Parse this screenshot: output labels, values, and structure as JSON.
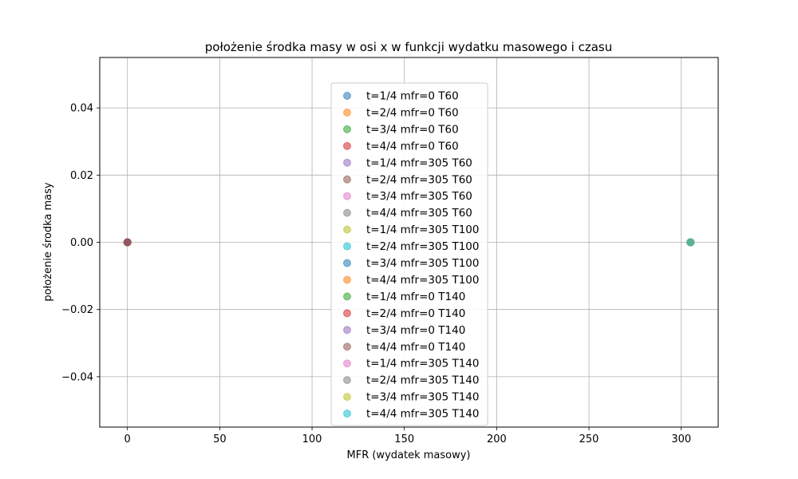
{
  "chart_data": {
    "type": "scatter",
    "title": "położenie środka masy w osi x w funkcji wydatku masowego i czasu",
    "xlabel": "MFR (wydatek masowy)",
    "ylabel": "położenie środka masy",
    "xlim": [
      -15,
      320
    ],
    "ylim": [
      -0.055,
      0.055
    ],
    "xticks": [
      0,
      50,
      100,
      150,
      200,
      250,
      300
    ],
    "yticks": [
      -0.04,
      -0.02,
      0.0,
      0.02,
      0.04
    ],
    "xtick_labels": [
      "0",
      "50",
      "100",
      "150",
      "200",
      "250",
      "300"
    ],
    "ytick_labels": [
      "−0.04",
      "−0.02",
      "0.00",
      "0.02",
      "0.04"
    ],
    "grid": true,
    "legend_position": "center",
    "marker_alpha": 0.55,
    "series": [
      {
        "name": "t=1/4 mfr=0 T60",
        "color": "#1f77b4",
        "points": [
          [
            0,
            0.0
          ]
        ]
      },
      {
        "name": "t=2/4 mfr=0 T60",
        "color": "#ff7f0e",
        "points": [
          [
            0,
            0.0
          ]
        ]
      },
      {
        "name": "t=3/4 mfr=0 T60",
        "color": "#2ca02c",
        "points": [
          [
            0,
            0.0
          ]
        ]
      },
      {
        "name": "t=4/4 mfr=0 T60",
        "color": "#d62728",
        "points": [
          [
            0,
            0.0
          ]
        ]
      },
      {
        "name": "t=1/4 mfr=305 T60",
        "color": "#9467bd",
        "points": [
          [
            305,
            0.0
          ]
        ]
      },
      {
        "name": "t=2/4 mfr=305 T60",
        "color": "#8c564b",
        "points": [
          [
            305,
            0.0
          ]
        ]
      },
      {
        "name": "t=3/4 mfr=305 T60",
        "color": "#e377c2",
        "points": [
          [
            305,
            0.0
          ]
        ]
      },
      {
        "name": "t=4/4 mfr=305 T60",
        "color": "#7f7f7f",
        "points": [
          [
            305,
            0.0
          ]
        ]
      },
      {
        "name": "t=1/4 mfr=305 T100",
        "color": "#bcbd22",
        "points": [
          [
            305,
            0.0
          ]
        ]
      },
      {
        "name": "t=2/4 mfr=305 T100",
        "color": "#17becf",
        "points": [
          [
            305,
            0.0
          ]
        ]
      },
      {
        "name": "t=3/4 mfr=305 T100",
        "color": "#1f77b4",
        "points": [
          [
            305,
            0.0
          ]
        ]
      },
      {
        "name": "t=4/4 mfr=305 T100",
        "color": "#ff7f0e",
        "points": [
          [
            305,
            0.0
          ]
        ]
      },
      {
        "name": "t=1/4 mfr=0 T140",
        "color": "#2ca02c",
        "points": [
          [
            0,
            0.0
          ]
        ]
      },
      {
        "name": "t=2/4 mfr=0 T140",
        "color": "#d62728",
        "points": [
          [
            0,
            0.0
          ]
        ]
      },
      {
        "name": "t=3/4 mfr=0 T140",
        "color": "#9467bd",
        "points": [
          [
            0,
            0.0
          ]
        ]
      },
      {
        "name": "t=4/4 mfr=0 T140",
        "color": "#8c564b",
        "points": [
          [
            0,
            0.0
          ]
        ]
      },
      {
        "name": "t=1/4 mfr=305 T140",
        "color": "#e377c2",
        "points": [
          [
            305,
            0.0
          ]
        ]
      },
      {
        "name": "t=2/4 mfr=305 T140",
        "color": "#7f7f7f",
        "points": [
          [
            305,
            0.0
          ]
        ]
      },
      {
        "name": "t=3/4 mfr=305 T140",
        "color": "#bcbd22",
        "points": [
          [
            305,
            0.0
          ]
        ]
      },
      {
        "name": "t=4/4 mfr=305 T140",
        "color": "#17becf",
        "points": [
          [
            305,
            0.0
          ]
        ]
      }
    ]
  }
}
